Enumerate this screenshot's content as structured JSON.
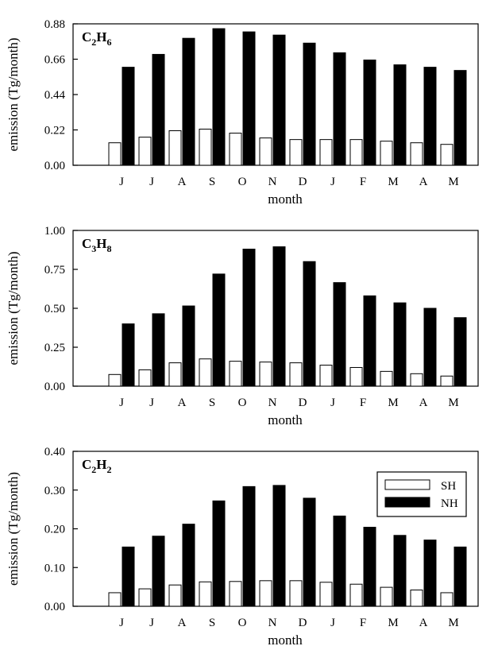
{
  "chart_data": [
    {
      "type": "bar",
      "label_main": [
        "C",
        "H"
      ],
      "label_sub": [
        "2",
        "6"
      ],
      "xlabel": "month",
      "ylabel": "emission (Tg/month)",
      "categories": [
        "J",
        "J",
        "A",
        "S",
        "O",
        "N",
        "D",
        "J",
        "F",
        "M",
        "A",
        "M"
      ],
      "ylim": [
        0,
        0.88
      ],
      "yticks": [
        "0.00",
        "0.22",
        "0.44",
        "0.66",
        "0.88"
      ],
      "series": [
        {
          "values": [
            0.14,
            0.175,
            0.215,
            0.225,
            0.2,
            0.17,
            0.16,
            0.16,
            0.16,
            0.15,
            0.14,
            0.13
          ]
        },
        {
          "values": [
            0.61,
            0.69,
            0.79,
            0.85,
            0.83,
            0.81,
            0.76,
            0.7,
            0.655,
            0.625,
            0.61,
            0.59
          ]
        }
      ]
    },
    {
      "type": "bar",
      "label_main": [
        "C",
        "H"
      ],
      "label_sub": [
        "3",
        "8"
      ],
      "xlabel": "month",
      "ylabel": "emission (Tg/month)",
      "categories": [
        "J",
        "J",
        "A",
        "S",
        "O",
        "N",
        "D",
        "J",
        "F",
        "M",
        "A",
        "M"
      ],
      "ylim": [
        0,
        1.0
      ],
      "yticks": [
        "0.00",
        "0.25",
        "0.50",
        "0.75",
        "1.00"
      ],
      "series": [
        {
          "values": [
            0.075,
            0.105,
            0.15,
            0.175,
            0.16,
            0.155,
            0.15,
            0.135,
            0.12,
            0.095,
            0.08,
            0.065
          ]
        },
        {
          "values": [
            0.4,
            0.465,
            0.515,
            0.72,
            0.88,
            0.895,
            0.8,
            0.665,
            0.58,
            0.535,
            0.5,
            0.44
          ]
        }
      ]
    },
    {
      "type": "bar",
      "label_main": [
        "C",
        "H"
      ],
      "label_sub": [
        "2",
        "2"
      ],
      "xlabel": "month",
      "ylabel": "emission (Tg/month)",
      "categories": [
        "J",
        "J",
        "A",
        "S",
        "O",
        "N",
        "D",
        "J",
        "F",
        "M",
        "A",
        "M"
      ],
      "ylim": [
        0,
        0.4
      ],
      "yticks": [
        "0.00",
        "0.10",
        "0.20",
        "0.30",
        "0.40"
      ],
      "legend": {
        "placement": "top-right",
        "entries": [
          "SH",
          "NH"
        ]
      },
      "series": [
        {
          "name": "SH",
          "values": [
            0.035,
            0.045,
            0.055,
            0.063,
            0.064,
            0.066,
            0.066,
            0.062,
            0.057,
            0.049,
            0.042,
            0.035
          ]
        },
        {
          "name": "NH",
          "values": [
            0.153,
            0.181,
            0.212,
            0.272,
            0.309,
            0.312,
            0.279,
            0.233,
            0.204,
            0.183,
            0.171,
            0.153
          ]
        }
      ]
    }
  ],
  "colors": {
    "sh_fill": "#ffffff",
    "nh_fill": "#000000",
    "axis": "#000000"
  }
}
